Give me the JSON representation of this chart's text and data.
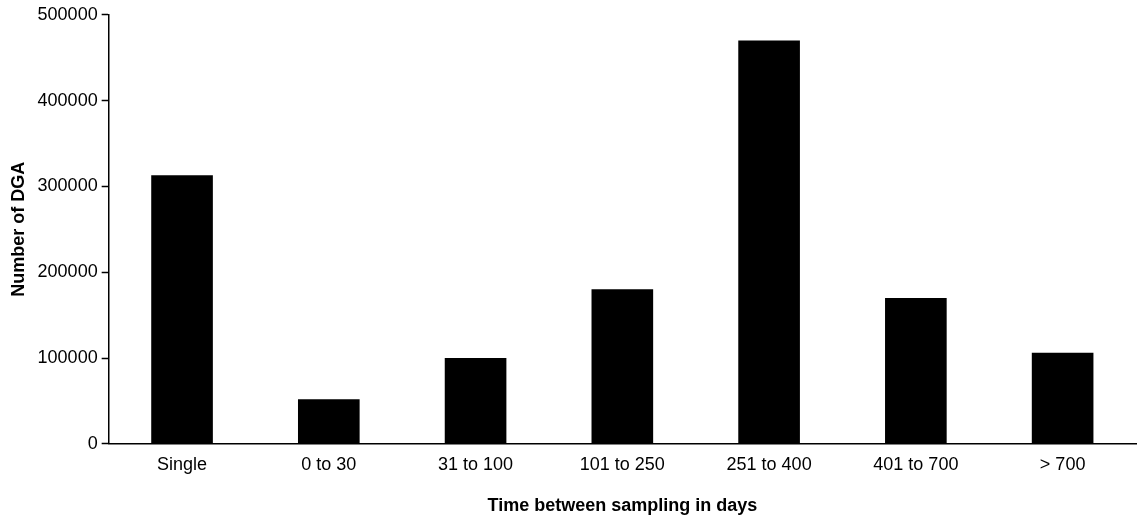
{
  "chart_data": {
    "type": "bar",
    "xlabel": "Time between sampling in days",
    "ylabel": "Number of DGA",
    "categories": [
      "Single",
      "0 to 30",
      "31 to 100",
      "101 to 250",
      "251 to 400",
      "401 to 700",
      "> 700"
    ],
    "values": [
      313000,
      52000,
      100000,
      180000,
      470000,
      170000,
      106000
    ],
    "color": "#000000",
    "ylim": [
      0,
      500000
    ],
    "yticks": [
      0,
      100000,
      200000,
      300000,
      400000,
      500000
    ],
    "grid": false,
    "legend": false
  }
}
